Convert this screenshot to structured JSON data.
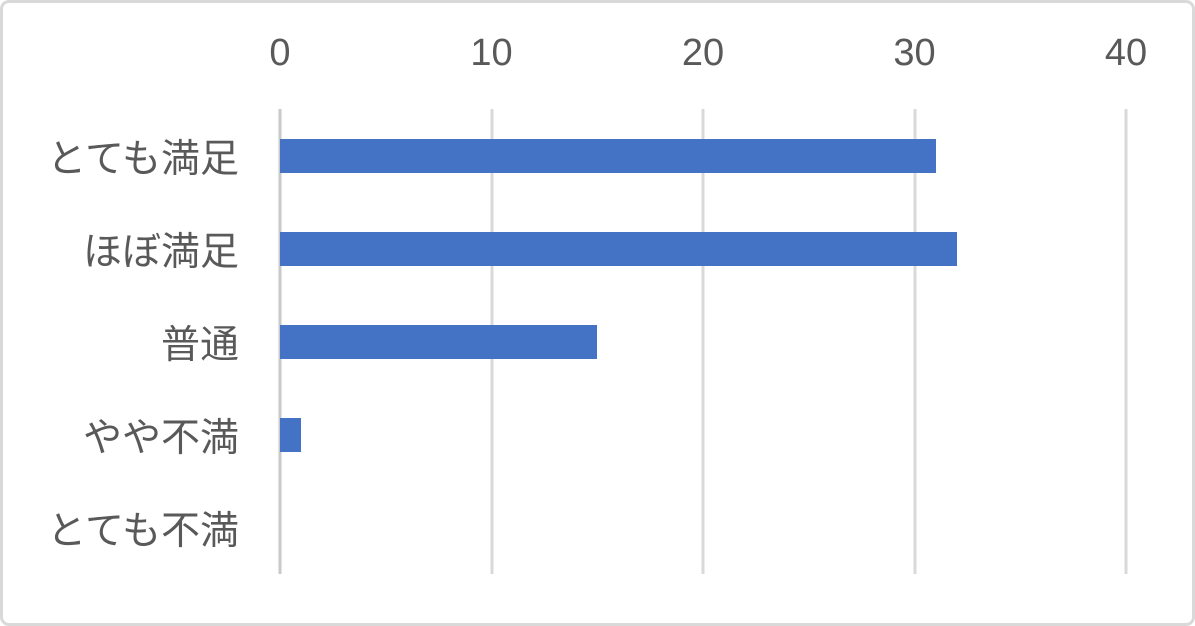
{
  "chart": {
    "background_color": "#ffffff",
    "border_color": "#d9d9d9",
    "bar_color": "#4472c4",
    "gridline_color": "#d9d9d9",
    "zero_line_color": "#c9c9c9",
    "text_color": "#595959"
  },
  "chart_data": {
    "type": "bar",
    "orientation": "horizontal",
    "title": "",
    "xlabel": "",
    "ylabel": "",
    "categories": [
      "とても満足",
      "ほぼ満足",
      "普通",
      "やや不満",
      "とても不満"
    ],
    "values": [
      31,
      32,
      15,
      1,
      0
    ],
    "xlim": [
      0,
      40
    ],
    "xticks": [
      0,
      10,
      20,
      30,
      40
    ],
    "tick_position": "top",
    "grid": true,
    "legend": false
  }
}
